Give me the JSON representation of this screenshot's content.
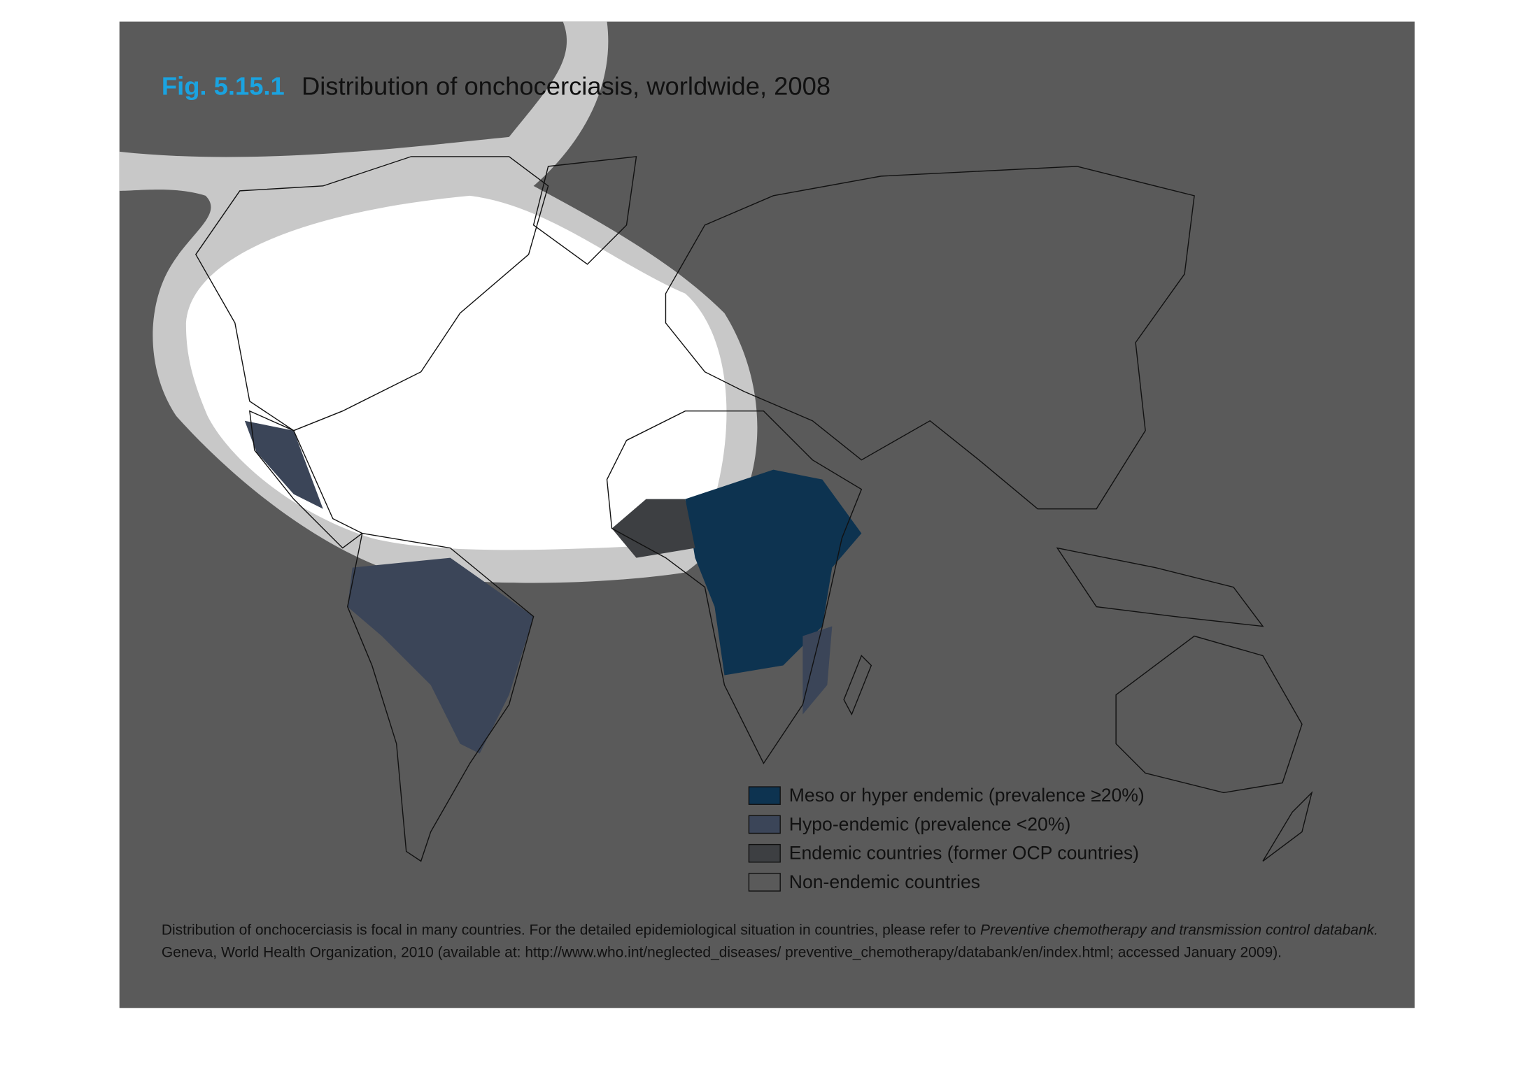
{
  "title": {
    "figure": "Fig. 5.15.1",
    "text": "Distribution of onchocerciasis, worldwide, 2008"
  },
  "legend": [
    {
      "label": "Meso or hyper endemic (prevalence ≥20%)",
      "color": "#0d3350"
    },
    {
      "label": "Hypo-endemic (prevalence <20%)",
      "color": "#3b4558"
    },
    {
      "label": "Endemic countries (former OCP countries)",
      "color": "#3d3f42"
    },
    {
      "label": "Non-endemic countries",
      "color": "#5a5a5a"
    }
  ],
  "footnote": {
    "line1": "Distribution of onchocerciasis is focal in many countries. For the detailed epidemiological situation in countries, please refer to ",
    "line1_italic": "Preventive chemotherapy and transmission control databank.",
    "line2": "Geneva, World Health Organization, 2010 (available at: http://www.who.int/neglected_diseases/ preventive_chemotherapy/databank/en/index.html; accessed January 2009)."
  }
}
